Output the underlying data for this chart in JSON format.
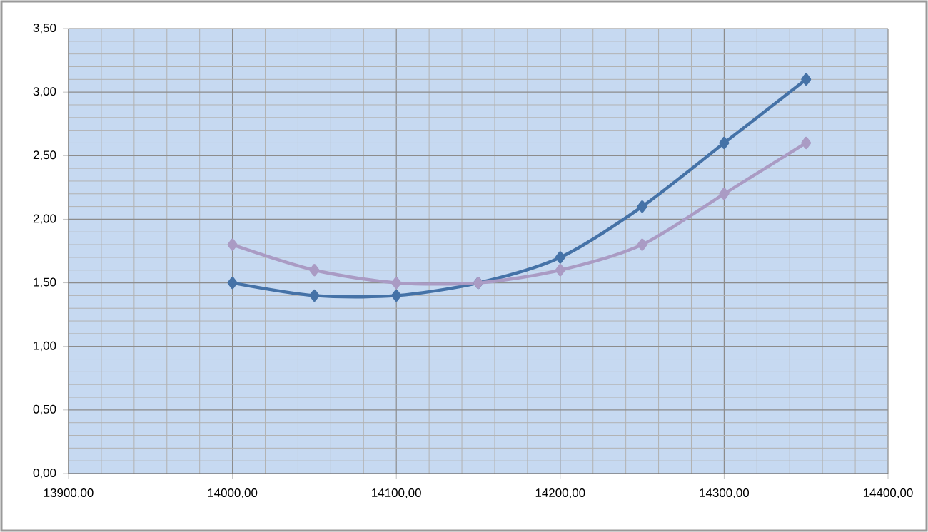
{
  "chart_data": {
    "type": "line",
    "x": [
      14000,
      14050,
      14100,
      14150,
      14200,
      14250,
      14300,
      14350
    ],
    "series": [
      {
        "color": "#4572a7",
        "values": [
          1.5,
          1.4,
          1.4,
          1.5,
          1.7,
          2.1,
          2.6,
          3.1
        ]
      },
      {
        "color": "#aa9bc4",
        "values": [
          1.8,
          1.6,
          1.5,
          1.5,
          1.6,
          1.8,
          2.2,
          2.6
        ]
      }
    ],
    "xlim": [
      13900,
      14400
    ],
    "xticks": [
      {
        "value": 13900,
        "label": "13900,00"
      },
      {
        "value": 14000,
        "label": "14000,00"
      },
      {
        "value": 14100,
        "label": "14100,00"
      },
      {
        "value": 14200,
        "label": "14200,00"
      },
      {
        "value": 14300,
        "label": "14300,00"
      },
      {
        "value": 14400,
        "label": "14400,00"
      }
    ],
    "ylim": [
      0,
      3.5
    ],
    "yticks": [
      {
        "value": 0,
        "label": "0,00"
      },
      {
        "value": 0.5,
        "label": "0,50"
      },
      {
        "value": 1,
        "label": "1,00"
      },
      {
        "value": 1.5,
        "label": "1,50"
      },
      {
        "value": 2,
        "label": "2,00"
      },
      {
        "value": 2.5,
        "label": "2,50"
      },
      {
        "value": 3,
        "label": "3,00"
      },
      {
        "value": 3.5,
        "label": "3,50"
      }
    ],
    "grid": true,
    "marker": "diamond",
    "line_style": "solid"
  }
}
